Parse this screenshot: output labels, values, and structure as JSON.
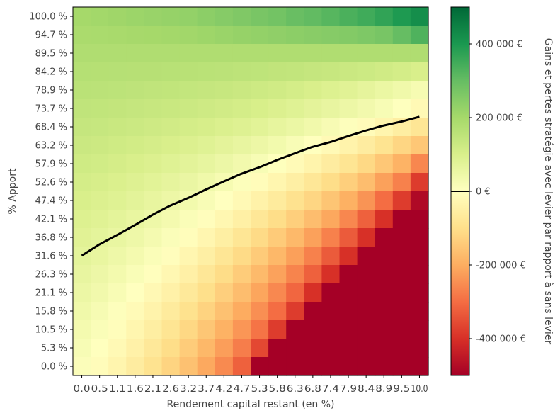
{
  "chart_data": {
    "type": "heatmap",
    "title": "",
    "xlabel": "Rendement capital restant (en %)",
    "ylabel": "% Apport",
    "colorbar_label": "Gains et pertes stratégie avec levier par rapport à sans levier",
    "colormap": "RdYlGn",
    "color_range": [
      -500000,
      500000
    ],
    "x_ticks": [
      "0.0",
      "0.5",
      "1.1",
      "1.6",
      "2.1",
      "2.6",
      "3.2",
      "3.7",
      "4.2",
      "4.7",
      "5.3",
      "5.8",
      "6.3",
      "6.8",
      "7.4",
      "7.9",
      "8.4",
      "8.9",
      "9.5",
      "10.0"
    ],
    "y_ticks": [
      "100.0 %",
      "94.7 %",
      "89.5 %",
      "84.2 %",
      "78.9 %",
      "73.7 %",
      "68.4 %",
      "63.2 %",
      "57.9 %",
      "52.6 %",
      "47.4 %",
      "42.1 %",
      "36.8 %",
      "31.6 %",
      "26.3 %",
      "21.1 %",
      "15.8 %",
      "10.5 %",
      "5.3 %",
      "0.0 %"
    ],
    "colorbar_ticks": [
      "400 000 €",
      "200 000 €",
      "0 €",
      "-200 000 €",
      "-400 000 €"
    ],
    "colorbar_tick_values": [
      400000,
      200000,
      0,
      -200000,
      -400000
    ],
    "values": [
      [
        200000,
        205000,
        210000,
        215000,
        220000,
        225000,
        230000,
        240000,
        250000,
        260000,
        270000,
        280000,
        295000,
        305000,
        320000,
        335000,
        350000,
        370000,
        395000,
        420000
      ],
      [
        190000,
        192000,
        195000,
        198000,
        200000,
        203000,
        207000,
        212000,
        218000,
        225000,
        230000,
        235000,
        240000,
        245000,
        250000,
        255000,
        262000,
        272000,
        300000,
        330000
      ],
      [
        180000,
        180000,
        180000,
        180000,
        180000,
        180000,
        180000,
        180000,
        180000,
        180000,
        180000,
        180000,
        180000,
        180000,
        180000,
        180000,
        180000,
        180000,
        180000,
        180000
      ],
      [
        170000,
        169000,
        168000,
        167000,
        166000,
        165000,
        163000,
        161000,
        158000,
        155000,
        152000,
        148000,
        145000,
        140000,
        135000,
        130000,
        125000,
        118000,
        110000,
        100000
      ],
      [
        160000,
        158000,
        156000,
        153000,
        150000,
        147000,
        143000,
        139000,
        135000,
        130000,
        124000,
        117000,
        109000,
        100000,
        90000,
        80000,
        67000,
        53000,
        40000,
        25000
      ],
      [
        150000,
        147000,
        144000,
        140000,
        136000,
        132000,
        127000,
        122000,
        116000,
        110000,
        102000,
        93000,
        83000,
        72000,
        60000,
        48000,
        35000,
        20000,
        2000,
        -20000
      ],
      [
        140000,
        137000,
        132000,
        127000,
        122000,
        116000,
        110000,
        103000,
        95000,
        86000,
        76000,
        64000,
        52000,
        38000,
        22000,
        6000,
        -12000,
        -32000,
        -55000,
        -80000
      ],
      [
        130000,
        126000,
        120000,
        114000,
        107000,
        100000,
        92000,
        83000,
        72000,
        60000,
        48000,
        34000,
        18000,
        1000,
        -18000,
        -38000,
        -60000,
        -88000,
        -120000,
        -150000
      ],
      [
        120000,
        115000,
        108000,
        100000,
        92000,
        83000,
        73000,
        62000,
        49000,
        35000,
        20000,
        3000,
        -16000,
        -37000,
        -60000,
        -85000,
        -115000,
        -150000,
        -190000,
        -260000
      ],
      [
        110000,
        104000,
        96000,
        87000,
        77000,
        66000,
        54000,
        40000,
        25000,
        8000,
        -10000,
        -30000,
        -52000,
        -77000,
        -105000,
        -135000,
        -170000,
        -220000,
        -270000,
        -380000
      ],
      [
        100000,
        93000,
        84000,
        73000,
        61000,
        48000,
        34000,
        18000,
        0,
        -20000,
        -42000,
        -66000,
        -92000,
        -120000,
        -155000,
        -195000,
        -240000,
        -300000,
        -380000,
        -480000
      ],
      [
        90000,
        82000,
        71000,
        59000,
        45000,
        30000,
        13000,
        -6000,
        -27000,
        -50000,
        -76000,
        -104000,
        -135000,
        -170000,
        -210000,
        -260000,
        -320000,
        -400000,
        -600000,
        -650000
      ],
      [
        80000,
        70000,
        58000,
        44000,
        29000,
        12000,
        -7000,
        -29000,
        -53000,
        -80000,
        -110000,
        -142000,
        -178000,
        -220000,
        -270000,
        -330000,
        -400000,
        -550000,
        -650000,
        -700000
      ],
      [
        70000,
        59000,
        45000,
        30000,
        13000,
        -6000,
        -28000,
        -52000,
        -80000,
        -110000,
        -143000,
        -180000,
        -222000,
        -270000,
        -330000,
        -400000,
        -550000,
        -650000,
        -700000,
        -750000
      ],
      [
        60000,
        47000,
        32000,
        15000,
        -4000,
        -25000,
        -49000,
        -76000,
        -106000,
        -140000,
        -177000,
        -218000,
        -265000,
        -320000,
        -400000,
        -550000,
        -650000,
        -700000,
        -750000,
        -800000
      ],
      [
        50000,
        36000,
        19000,
        0,
        -21000,
        -45000,
        -71000,
        -101000,
        -134000,
        -170000,
        -212000,
        -258000,
        -312000,
        -400000,
        -550000,
        -650000,
        -700000,
        -750000,
        -800000,
        -850000
      ],
      [
        40000,
        24000,
        6000,
        -15000,
        -39000,
        -65000,
        -94000,
        -127000,
        -163000,
        -203000,
        -248000,
        -300000,
        -380000,
        -550000,
        -650000,
        -700000,
        -750000,
        -800000,
        -850000,
        -900000
      ],
      [
        30000,
        13000,
        -7000,
        -30000,
        -56000,
        -85000,
        -117000,
        -153000,
        -193000,
        -237000,
        -290000,
        -380000,
        -550000,
        -650000,
        -700000,
        -750000,
        -800000,
        -850000,
        -900000,
        -950000
      ],
      [
        20000,
        1000,
        -20000,
        -45000,
        -73000,
        -105000,
        -140000,
        -180000,
        -224000,
        -275000,
        -360000,
        -550000,
        -650000,
        -700000,
        -750000,
        -800000,
        -850000,
        -900000,
        -950000,
        -1000000
      ],
      [
        10000,
        -10000,
        -33000,
        -60000,
        -91000,
        -125000,
        -163000,
        -207000,
        -256000,
        -320000,
        -550000,
        -650000,
        -700000,
        -750000,
        -800000,
        -850000,
        -900000,
        -950000,
        -1000000,
        -1050000
      ]
    ],
    "zero_line": {
      "x": [
        0.0,
        0.5,
        1.1,
        1.6,
        2.1,
        2.6,
        3.2,
        3.7,
        4.2,
        4.7,
        5.3,
        5.8,
        6.3,
        6.8,
        7.4,
        7.9,
        8.4,
        8.9,
        9.5,
        10.0
      ],
      "y": [
        31.6,
        34.7,
        37.8,
        40.5,
        43.3,
        45.8,
        48.3,
        50.6,
        52.8,
        54.9,
        57.0,
        59.0,
        60.8,
        62.6,
        64.2,
        65.8,
        67.3,
        68.7,
        70.0,
        71.3
      ]
    }
  }
}
